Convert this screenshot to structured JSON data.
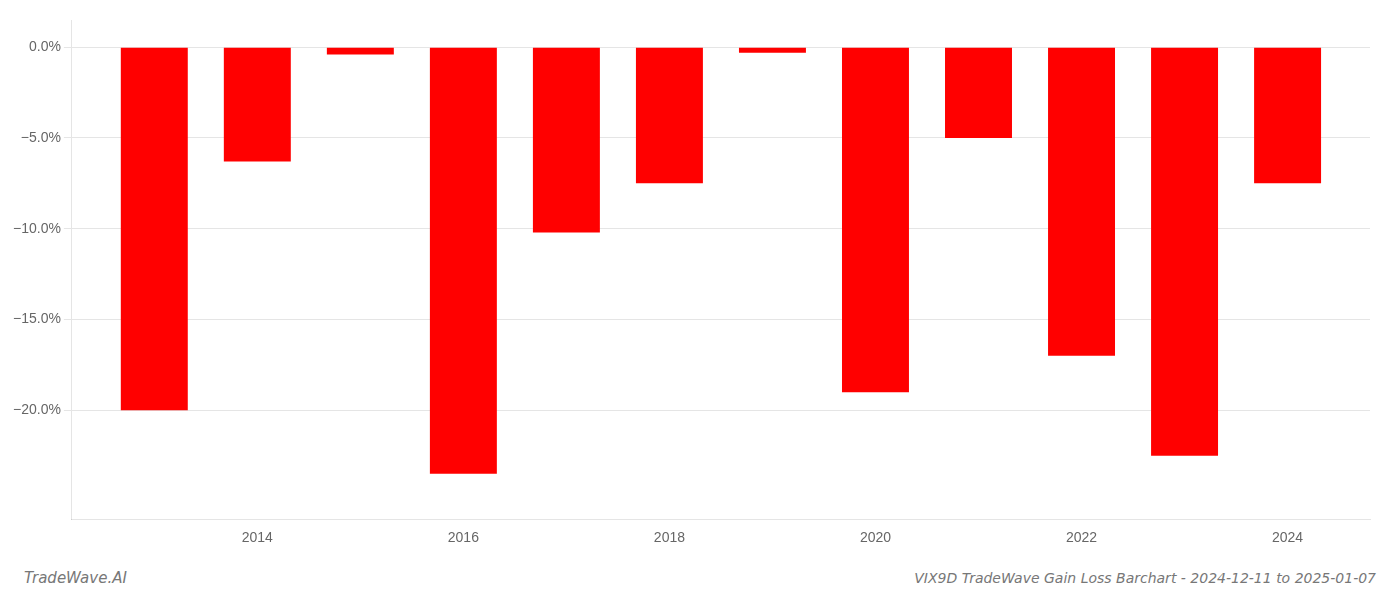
{
  "chart_data": {
    "type": "bar",
    "title": "VIX9D TradeWave Gain Loss Barchart - 2024-12-11 to 2025-01-07",
    "annotations": [
      "TradeWave.AI"
    ],
    "x": [
      2013,
      2014,
      2015,
      2016,
      2017,
      2018,
      2019,
      2020,
      2021,
      2022,
      2023,
      2024
    ],
    "values": [
      -20.0,
      -6.3,
      -0.4,
      -23.5,
      -10.2,
      -7.5,
      -0.3,
      -19.0,
      -5.0,
      -17.0,
      -22.5,
      -7.5
    ],
    "color": "#ff0000",
    "xlim": [
      2012.2,
      2024.8
    ],
    "xticks": [
      2014,
      2016,
      2018,
      2020,
      2022,
      2024
    ],
    "ylim": [
      -26,
      1.5
    ],
    "yticks": [
      {
        "value": 0.0,
        "label": "0.0%"
      },
      {
        "value": -5.0,
        "label": "−5.0%"
      },
      {
        "value": -10.0,
        "label": "−10.0%"
      },
      {
        "value": -15.0,
        "label": "−15.0%"
      },
      {
        "value": -20.0,
        "label": "−20.0%"
      }
    ],
    "grid": true
  }
}
